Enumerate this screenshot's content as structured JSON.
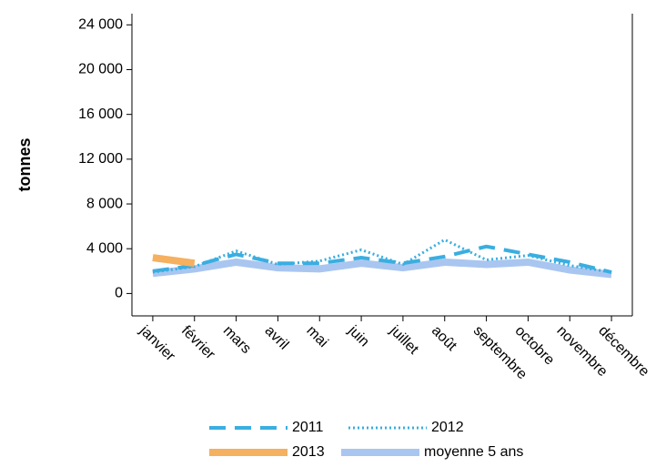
{
  "chart_data": {
    "type": "line",
    "y_label": "tonnes",
    "categories": [
      "janvier",
      "février",
      "mars",
      "avril",
      "mai",
      "juin",
      "juillet",
      "août",
      "septembre",
      "octobre",
      "novembre",
      "décembre"
    ],
    "series": [
      {
        "name": "moyenne 5 ans",
        "color": "#a9c6f0",
        "style": "solid-thick",
        "values": [
          1800,
          2200,
          2800,
          2300,
          2200,
          2700,
          2300,
          2800,
          2600,
          2800,
          2100,
          1700
        ]
      },
      {
        "name": "2011",
        "color": "#3aaee0",
        "style": "dashed",
        "values": [
          2000,
          2500,
          3500,
          2700,
          2700,
          3200,
          2700,
          3300,
          4200,
          3500,
          2800,
          1900
        ]
      },
      {
        "name": "2012",
        "color": "#3aaee0",
        "style": "dotted",
        "values": [
          1900,
          2400,
          3800,
          2600,
          2900,
          3900,
          2600,
          4800,
          3000,
          3400,
          2500,
          1900
        ]
      },
      {
        "name": "2013",
        "color": "#f5b060",
        "style": "solid-thick",
        "values": [
          3200,
          2700,
          null,
          null,
          null,
          null,
          null,
          null,
          null,
          null,
          null,
          null
        ]
      }
    ],
    "ylim": [
      -2000,
      25000
    ],
    "yticks": [
      0,
      {
        "value": 4000,
        "label": "4 000"
      },
      {
        "value": 8000,
        "label": "8 000"
      },
      {
        "value": 12000,
        "label": "12 000"
      },
      {
        "value": 16000,
        "label": "16 000"
      },
      {
        "value": 20000,
        "label": "20 000"
      },
      {
        "value": 24000,
        "label": "24 000"
      }
    ],
    "grid": false
  }
}
